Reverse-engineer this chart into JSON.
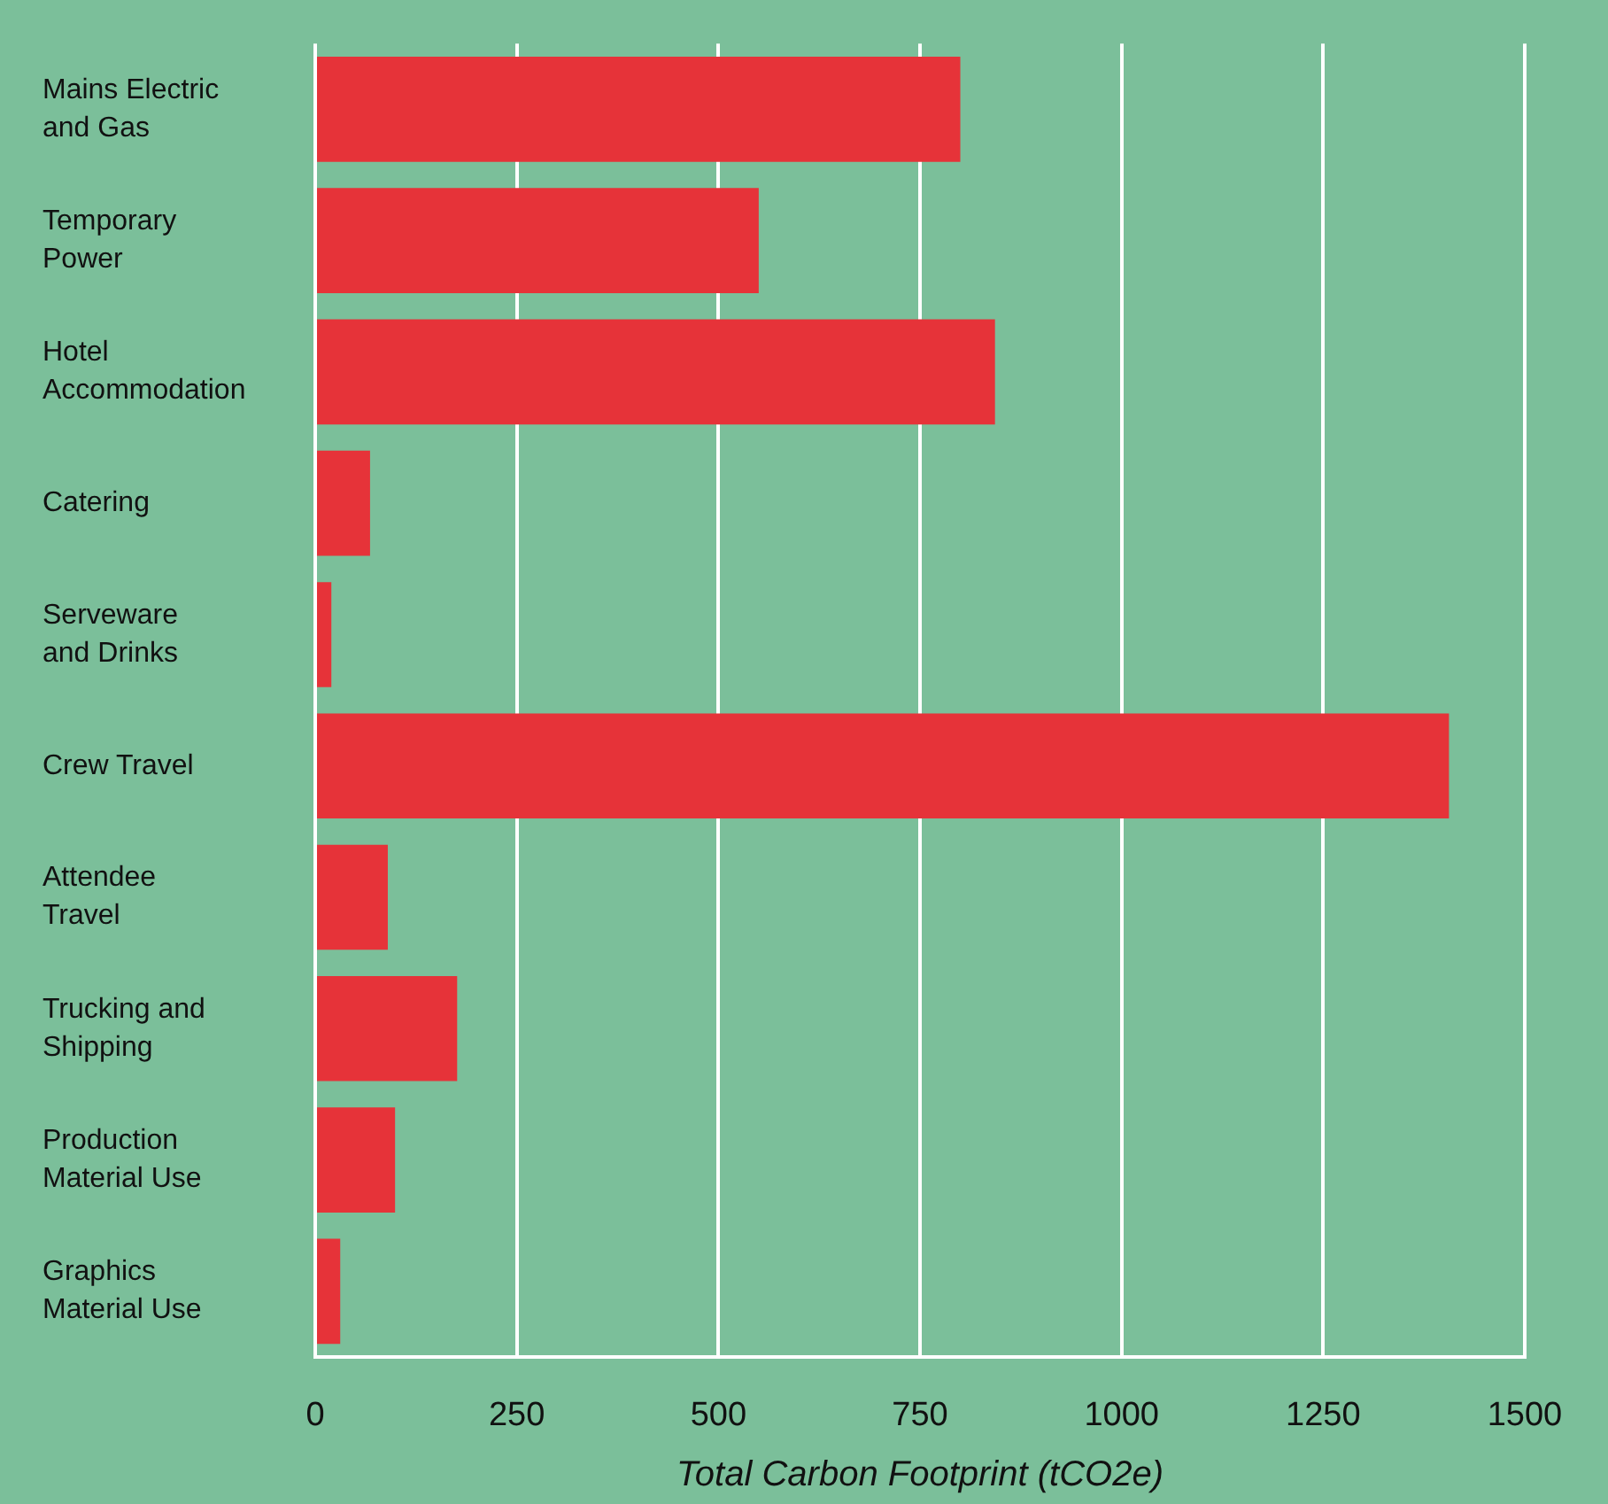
{
  "chart_data": {
    "type": "bar",
    "orientation": "horizontal",
    "categories": [
      "Mains Electric and Gas",
      "Temporary Power",
      "Hotel Accommodation",
      "Catering",
      "Serveware and Drinks",
      "Crew Travel",
      "Attendee Travel",
      "Trucking and Shipping",
      "Production Material Use",
      "Graphics Material Use"
    ],
    "values": [
      800,
      550,
      843,
      68,
      20,
      1406,
      90,
      176,
      99,
      31
    ],
    "color": "#e63339",
    "xlabel": "Total Carbon Footprint (tCO2e)",
    "xlim": [
      0,
      1500
    ],
    "xticks": [
      0,
      250,
      500,
      750,
      1000,
      1250,
      1500
    ],
    "grid": "x",
    "legend": false
  }
}
